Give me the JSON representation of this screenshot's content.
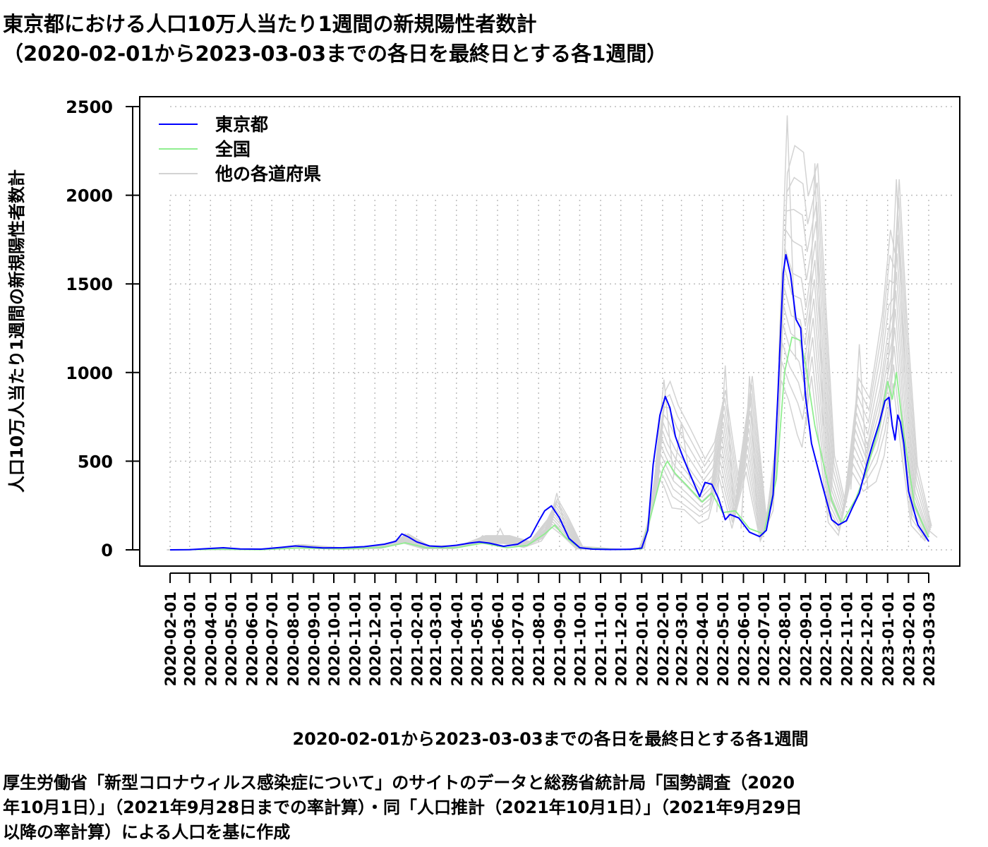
{
  "title_line1": "東京都における人口10万人当たり1週間の新規陽性者数計",
  "title_line2": "（2020-02-01から2023-03-03までの各日を最終日とする各1週間）",
  "xlabel": "2020-02-01から2023-03-03までの各日を最終日とする各1週間",
  "ylabel": "人口10万人当たり1週間の新規陽性者数計",
  "source_line1": "厚生労働省「新型コロナウィルス感染症について」のサイトのデータと総務省統計局「国勢調査（2020",
  "source_line2": "年10月1日）」（2021年9月28日までの率計算）・同「人口推計（2021年10月1日）」（2021年9月29日",
  "source_line3": "以降の率計算）による人口を基に作成",
  "legend": [
    {
      "label": "東京都",
      "color": "#0000ff"
    },
    {
      "label": "全国",
      "color": "#90ee90"
    },
    {
      "label": "他の各道府県",
      "color": "#d3d3d3"
    }
  ],
  "chart_data": {
    "type": "line",
    "title": "東京都における人口10万人当たり1週間の新規陽性者数計（2020-02-01から2023-03-03までの各日を最終日とする各1週間）",
    "xlabel": "2020-02-01から2023-03-03までの各日を最終日とする各1週間",
    "ylabel": "人口10万人当たり1週間の新規陽性者数計",
    "xlim": [
      "2020-02-01",
      "2023-03-03"
    ],
    "ylim": [
      0,
      2500
    ],
    "yticks": [
      0,
      500,
      1000,
      1500,
      2000,
      2500
    ],
    "xticks": [
      "2020-02-01",
      "2020-03-01",
      "2020-04-01",
      "2020-05-01",
      "2020-06-01",
      "2020-07-01",
      "2020-08-01",
      "2020-09-01",
      "2020-10-01",
      "2020-11-01",
      "2020-12-01",
      "2021-01-01",
      "2021-02-01",
      "2021-03-01",
      "2021-04-01",
      "2021-05-01",
      "2021-06-01",
      "2021-07-01",
      "2021-08-01",
      "2021-09-01",
      "2021-10-01",
      "2021-11-01",
      "2021-12-01",
      "2022-01-01",
      "2022-02-01",
      "2022-03-01",
      "2022-04-01",
      "2022-05-01",
      "2022-06-01",
      "2022-07-01",
      "2022-08-01",
      "2022-09-01",
      "2022-10-01",
      "2022-11-01",
      "2022-12-01",
      "2023-01-01",
      "2023-02-01",
      "2023-03-03"
    ],
    "grid": true,
    "legend_position": "top-left",
    "series": [
      {
        "name": "東京都",
        "color": "#0000ff",
        "points": [
          [
            "2020-02-01",
            0
          ],
          [
            "2020-03-01",
            1
          ],
          [
            "2020-04-01",
            8
          ],
          [
            "2020-04-20",
            12
          ],
          [
            "2020-05-15",
            5
          ],
          [
            "2020-06-15",
            4
          ],
          [
            "2020-07-15",
            14
          ],
          [
            "2020-08-05",
            22
          ],
          [
            "2020-08-25",
            16
          ],
          [
            "2020-09-15",
            11
          ],
          [
            "2020-10-15",
            12
          ],
          [
            "2020-11-15",
            18
          ],
          [
            "2020-12-15",
            32
          ],
          [
            "2021-01-01",
            48
          ],
          [
            "2021-01-10",
            90
          ],
          [
            "2021-01-20",
            72
          ],
          [
            "2021-02-01",
            45
          ],
          [
            "2021-02-20",
            22
          ],
          [
            "2021-03-10",
            18
          ],
          [
            "2021-04-01",
            26
          ],
          [
            "2021-04-20",
            38
          ],
          [
            "2021-05-05",
            45
          ],
          [
            "2021-05-20",
            38
          ],
          [
            "2021-06-10",
            20
          ],
          [
            "2021-07-01",
            32
          ],
          [
            "2021-07-20",
            75
          ],
          [
            "2021-08-01",
            160
          ],
          [
            "2021-08-10",
            220
          ],
          [
            "2021-08-20",
            248
          ],
          [
            "2021-09-01",
            180
          ],
          [
            "2021-09-15",
            65
          ],
          [
            "2021-10-01",
            12
          ],
          [
            "2021-10-20",
            4
          ],
          [
            "2021-11-15",
            2
          ],
          [
            "2021-12-15",
            3
          ],
          [
            "2022-01-01",
            10
          ],
          [
            "2022-01-10",
            110
          ],
          [
            "2022-01-18",
            480
          ],
          [
            "2022-01-28",
            760
          ],
          [
            "2022-02-05",
            865
          ],
          [
            "2022-02-12",
            800
          ],
          [
            "2022-02-20",
            640
          ],
          [
            "2022-03-01",
            545
          ],
          [
            "2022-03-10",
            460
          ],
          [
            "2022-03-20",
            370
          ],
          [
            "2022-03-28",
            300
          ],
          [
            "2022-04-05",
            380
          ],
          [
            "2022-04-15",
            370
          ],
          [
            "2022-04-25",
            290
          ],
          [
            "2022-05-05",
            170
          ],
          [
            "2022-05-12",
            200
          ],
          [
            "2022-05-25",
            180
          ],
          [
            "2022-06-10",
            100
          ],
          [
            "2022-06-25",
            75
          ],
          [
            "2022-07-05",
            110
          ],
          [
            "2022-07-15",
            310
          ],
          [
            "2022-07-22",
            860
          ],
          [
            "2022-07-30",
            1560
          ],
          [
            "2022-08-03",
            1665
          ],
          [
            "2022-08-10",
            1550
          ],
          [
            "2022-08-18",
            1300
          ],
          [
            "2022-08-25",
            1250
          ],
          [
            "2022-09-01",
            870
          ],
          [
            "2022-09-10",
            600
          ],
          [
            "2022-09-25",
            380
          ],
          [
            "2022-10-10",
            170
          ],
          [
            "2022-10-20",
            140
          ],
          [
            "2022-11-01",
            165
          ],
          [
            "2022-11-10",
            240
          ],
          [
            "2022-11-20",
            320
          ],
          [
            "2022-12-01",
            480
          ],
          [
            "2022-12-10",
            600
          ],
          [
            "2022-12-20",
            720
          ],
          [
            "2022-12-28",
            840
          ],
          [
            "2023-01-03",
            860
          ],
          [
            "2023-01-08",
            700
          ],
          [
            "2023-01-12",
            620
          ],
          [
            "2023-01-16",
            760
          ],
          [
            "2023-01-20",
            720
          ],
          [
            "2023-01-25",
            600
          ],
          [
            "2023-02-01",
            330
          ],
          [
            "2023-02-15",
            140
          ],
          [
            "2023-03-03",
            48
          ]
        ]
      },
      {
        "name": "全国",
        "color": "#90ee90",
        "points": [
          [
            "2020-02-01",
            0
          ],
          [
            "2020-04-15",
            3
          ],
          [
            "2020-06-15",
            1
          ],
          [
            "2020-08-10",
            10
          ],
          [
            "2020-10-15",
            5
          ],
          [
            "2020-12-15",
            15
          ],
          [
            "2021-01-15",
            40
          ],
          [
            "2021-02-15",
            12
          ],
          [
            "2021-04-01",
            12
          ],
          [
            "2021-05-10",
            38
          ],
          [
            "2021-06-15",
            12
          ],
          [
            "2021-07-15",
            25
          ],
          [
            "2021-08-10",
            90
          ],
          [
            "2021-08-25",
            140
          ],
          [
            "2021-09-10",
            70
          ],
          [
            "2021-10-01",
            10
          ],
          [
            "2021-12-01",
            1
          ],
          [
            "2022-01-01",
            5
          ],
          [
            "2022-01-15",
            200
          ],
          [
            "2022-02-01",
            450
          ],
          [
            "2022-02-08",
            500
          ],
          [
            "2022-02-20",
            430
          ],
          [
            "2022-03-10",
            360
          ],
          [
            "2022-04-01",
            270
          ],
          [
            "2022-04-15",
            320
          ],
          [
            "2022-05-01",
            210
          ],
          [
            "2022-05-20",
            220
          ],
          [
            "2022-06-10",
            120
          ],
          [
            "2022-07-01",
            90
          ],
          [
            "2022-07-20",
            400
          ],
          [
            "2022-08-01",
            1000
          ],
          [
            "2022-08-12",
            1200
          ],
          [
            "2022-08-25",
            1180
          ],
          [
            "2022-09-01",
            1050
          ],
          [
            "2022-09-15",
            700
          ],
          [
            "2022-10-10",
            280
          ],
          [
            "2022-10-25",
            150
          ],
          [
            "2022-11-15",
            290
          ],
          [
            "2022-12-01",
            450
          ],
          [
            "2022-12-20",
            700
          ],
          [
            "2023-01-01",
            950
          ],
          [
            "2023-01-08",
            850
          ],
          [
            "2023-01-14",
            1000
          ],
          [
            "2023-01-25",
            650
          ],
          [
            "2023-02-10",
            250
          ],
          [
            "2023-03-03",
            70
          ]
        ]
      },
      {
        "name": "他の各道府県",
        "color": "#d3d3d3",
        "points": [
          [
            "2020-08-10",
            30
          ],
          [
            "2021-01-15",
            90
          ],
          [
            "2021-05-10",
            80
          ],
          [
            "2021-06-05",
            120
          ],
          [
            "2021-08-28",
            320
          ],
          [
            "2022-02-03",
            960
          ],
          [
            "2022-03-01",
            720
          ],
          [
            "2022-05-05",
            1040
          ],
          [
            "2022-06-10",
            980
          ],
          [
            "2022-08-05",
            2450
          ],
          [
            "2022-09-15",
            2180
          ],
          [
            "2022-11-20",
            1160
          ],
          [
            "2023-01-14",
            2090
          ],
          [
            "2023-03-03",
            110
          ]
        ]
      }
    ]
  }
}
